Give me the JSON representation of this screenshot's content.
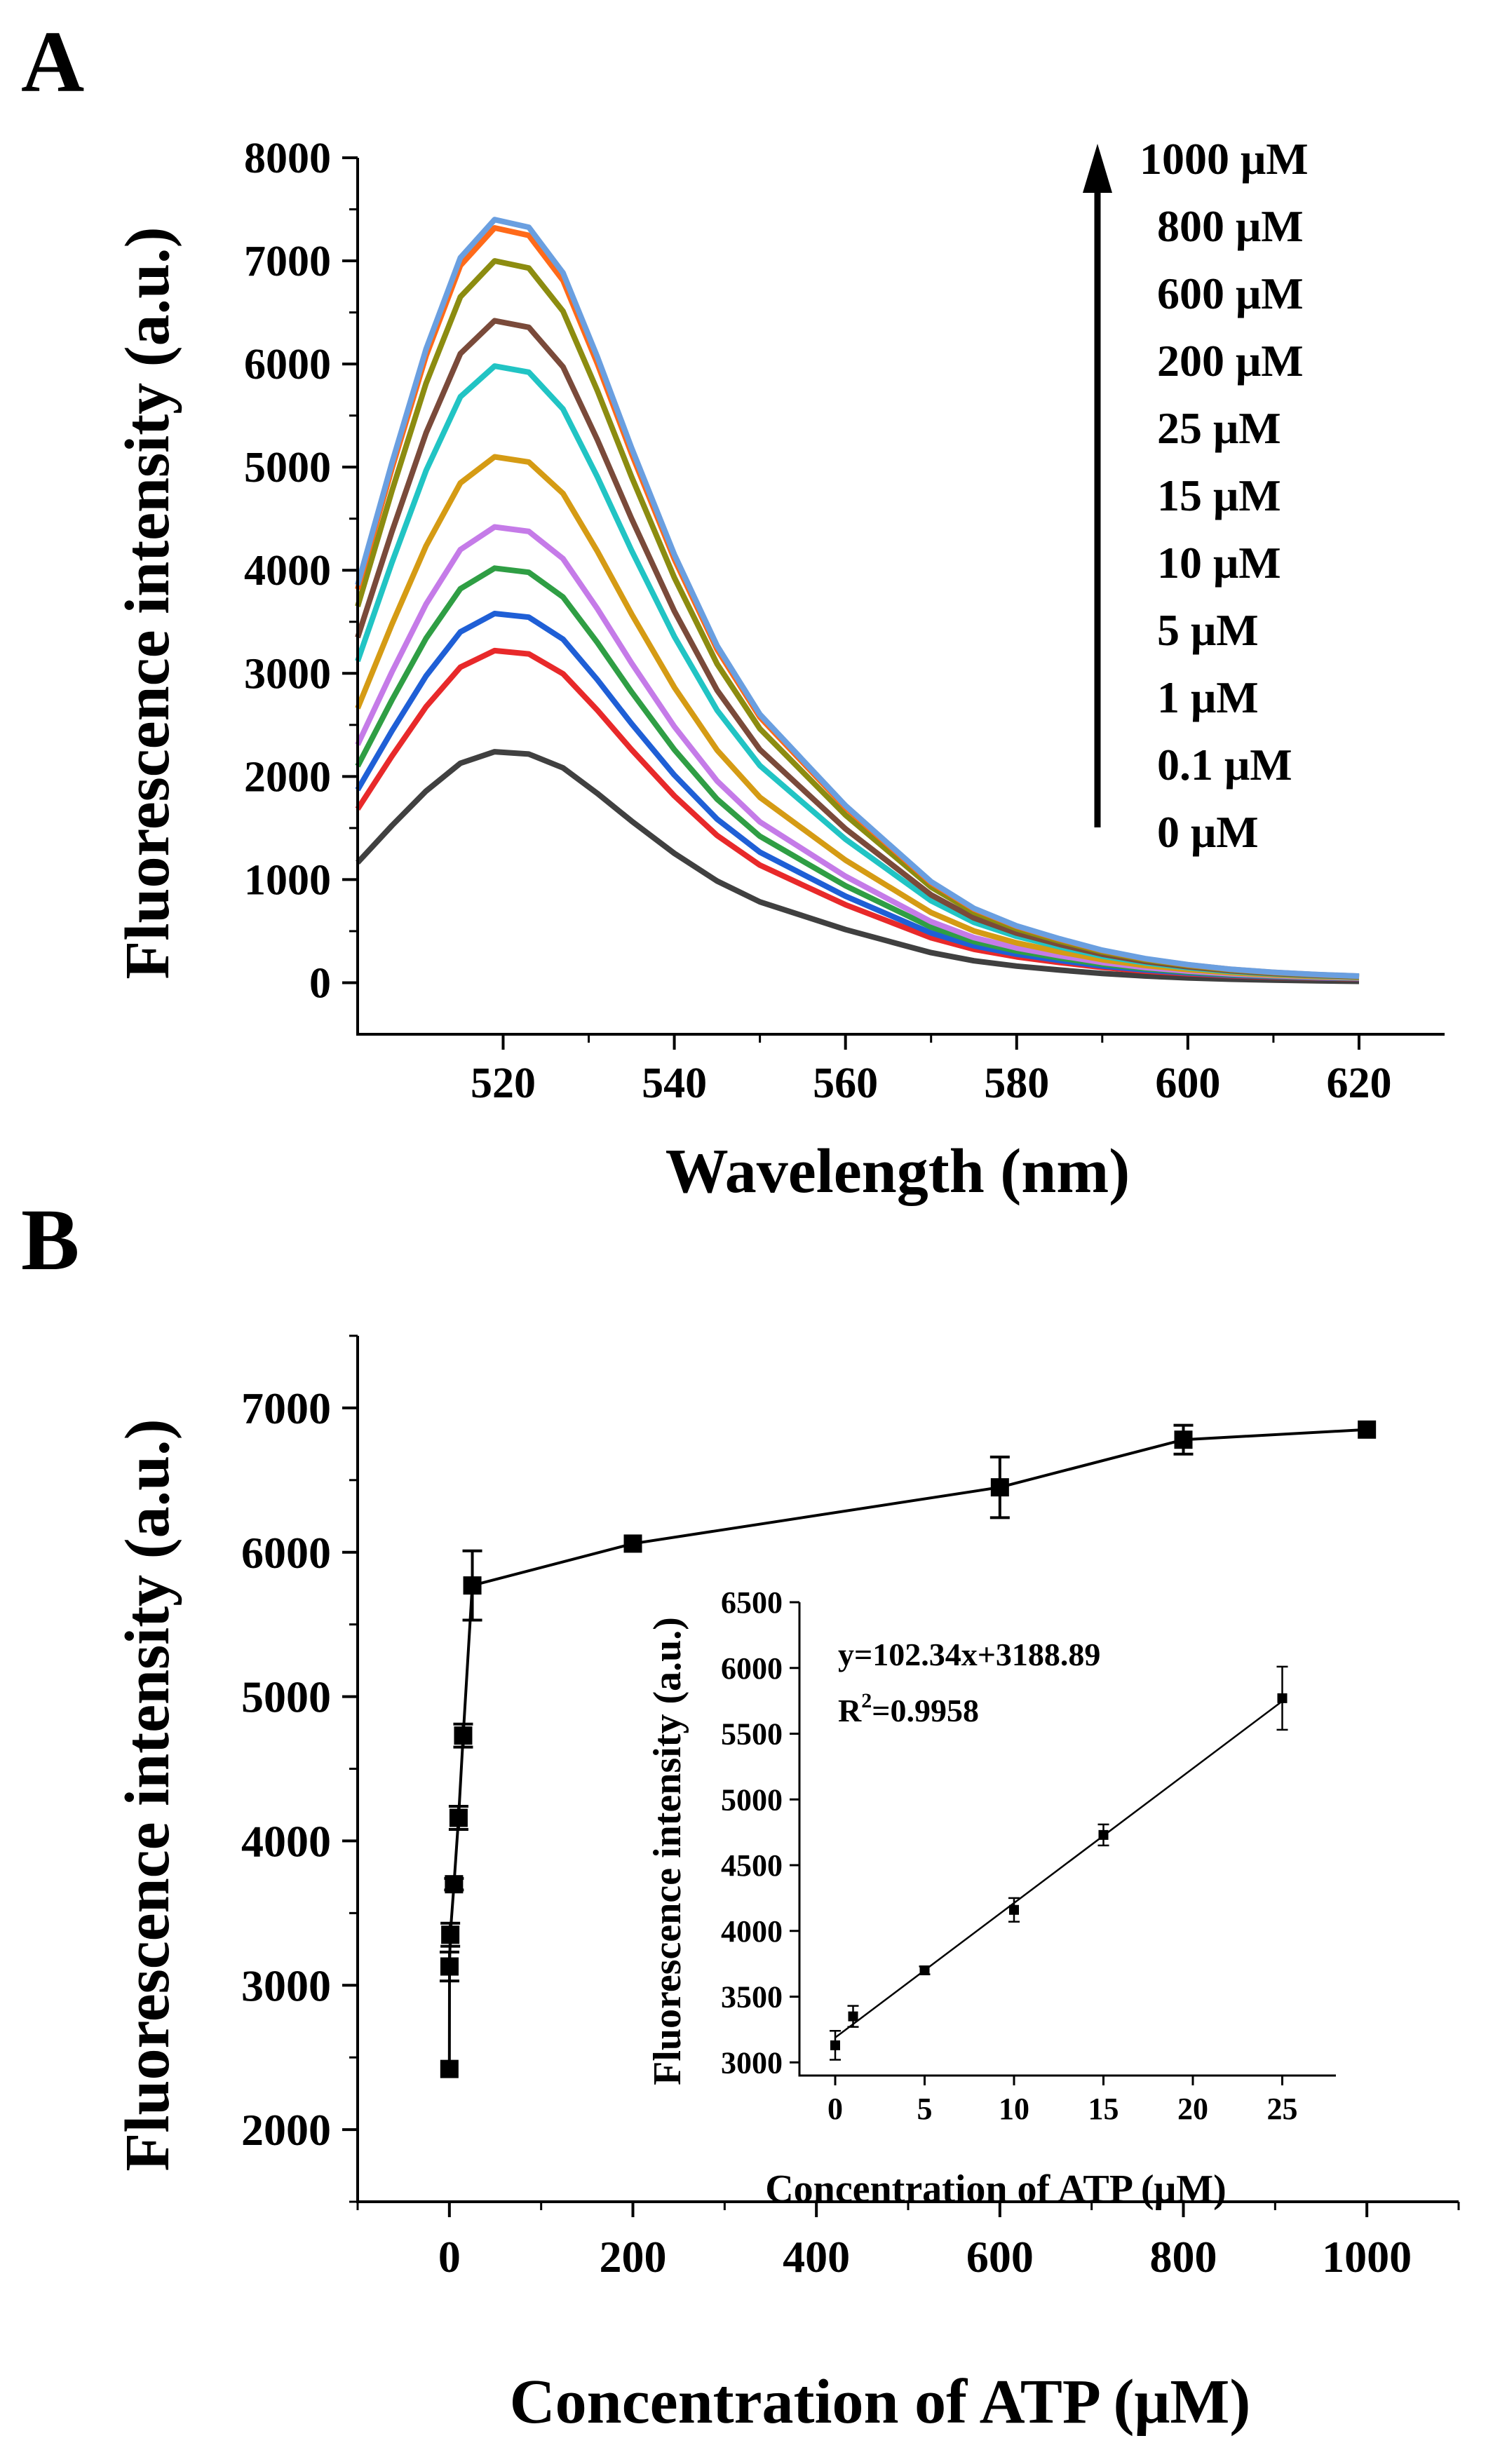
{
  "chart_data": [
    {
      "panel": "A",
      "type": "line",
      "xlabel": "Wavelength (nm)",
      "ylabel": "Fluorescence intensity (a.u.)",
      "xlim": [
        503,
        630
      ],
      "ylim": [
        -500,
        8000
      ],
      "xticks": [
        520,
        540,
        560,
        580,
        600,
        620
      ],
      "yticks": [
        0,
        1000,
        2000,
        3000,
        4000,
        5000,
        6000,
        7000,
        8000
      ],
      "x": [
        503,
        507,
        511,
        515,
        519,
        523,
        527,
        531,
        535,
        540,
        545,
        550,
        555,
        560,
        565,
        570,
        575,
        580,
        585,
        590,
        595,
        600,
        605,
        610,
        615,
        620
      ],
      "legend_arrow": "up",
      "series": [
        {
          "name": "0 μM",
          "color": "#404040",
          "peak": 2240
        },
        {
          "name": "0.1 μM",
          "color": "#e8292a",
          "peak": 3200
        },
        {
          "name": "1 μM",
          "color": "#1f5fd6",
          "peak": 3560
        },
        {
          "name": "5 μM",
          "color": "#2f9e44",
          "peak": 4000
        },
        {
          "name": "10 μM",
          "color": "#c57be8",
          "peak": 4400
        },
        {
          "name": "15 μM",
          "color": "#d59b14",
          "peak": 5080
        },
        {
          "name": "25 μM",
          "color": "#21c4c4",
          "peak": 5960
        },
        {
          "name": "200 μM",
          "color": "#7a4a3a",
          "peak": 6400
        },
        {
          "name": "600 μM",
          "color": "#8c8c10",
          "peak": 6980
        },
        {
          "name": "800 μM",
          "color": "#ff6a1a",
          "peak": 7300
        },
        {
          "name": "1000 μM",
          "color": "#6a9fe0",
          "peak": 7380
        }
      ],
      "shape": [
        0.52,
        0.68,
        0.83,
        0.95,
        1.0,
        0.99,
        0.93,
        0.82,
        0.7,
        0.56,
        0.44,
        0.35,
        0.29,
        0.23,
        0.18,
        0.13,
        0.095,
        0.072,
        0.055,
        0.04,
        0.029,
        0.021,
        0.015,
        0.011,
        0.008,
        0.006
      ]
    },
    {
      "panel": "B",
      "type": "line",
      "xlabel": "Concentration of ATP (μM)",
      "ylabel": "Fluorescence intensity (a.u.)",
      "xlim": [
        -100,
        1100
      ],
      "ylim": [
        1500,
        7500
      ],
      "xticks": [
        0,
        200,
        400,
        600,
        800,
        1000
      ],
      "yticks": [
        2000,
        3000,
        4000,
        5000,
        6000,
        7000
      ],
      "x": [
        0,
        0.1,
        1,
        5,
        10,
        15,
        25,
        200,
        600,
        800,
        1000
      ],
      "y": [
        2420,
        3130,
        3350,
        3700,
        4160,
        4730,
        5770,
        6060,
        6450,
        6780,
        6850
      ],
      "err": [
        0,
        100,
        80,
        40,
        80,
        80,
        240,
        0,
        210,
        100,
        0
      ]
    },
    {
      "panel": "B-inset",
      "type": "scatter",
      "xlabel": "Concentration of ATP (μM)",
      "ylabel": "Fluorescence intensity (a.u.)",
      "xlim": [
        -2,
        28
      ],
      "ylim": [
        2900,
        6500
      ],
      "xticks": [
        0,
        5,
        10,
        15,
        20,
        25
      ],
      "yticks": [
        3000,
        3500,
        4000,
        4500,
        5000,
        5500,
        6000,
        6500
      ],
      "x": [
        0,
        1,
        5,
        10,
        15,
        25
      ],
      "y": [
        3130,
        3350,
        3700,
        4160,
        4730,
        5770
      ],
      "err": [
        110,
        80,
        30,
        90,
        80,
        240
      ],
      "fit": {
        "slope": 102.34,
        "intercept": 3188.89,
        "x_range": [
          0,
          25
        ]
      },
      "equation": "y=102.34x+3188.89",
      "r2_label": "R",
      "r2_sup": "2",
      "r2_value": "=0.9958"
    }
  ],
  "labels": {
    "panel_a": "A",
    "panel_b": "B"
  }
}
